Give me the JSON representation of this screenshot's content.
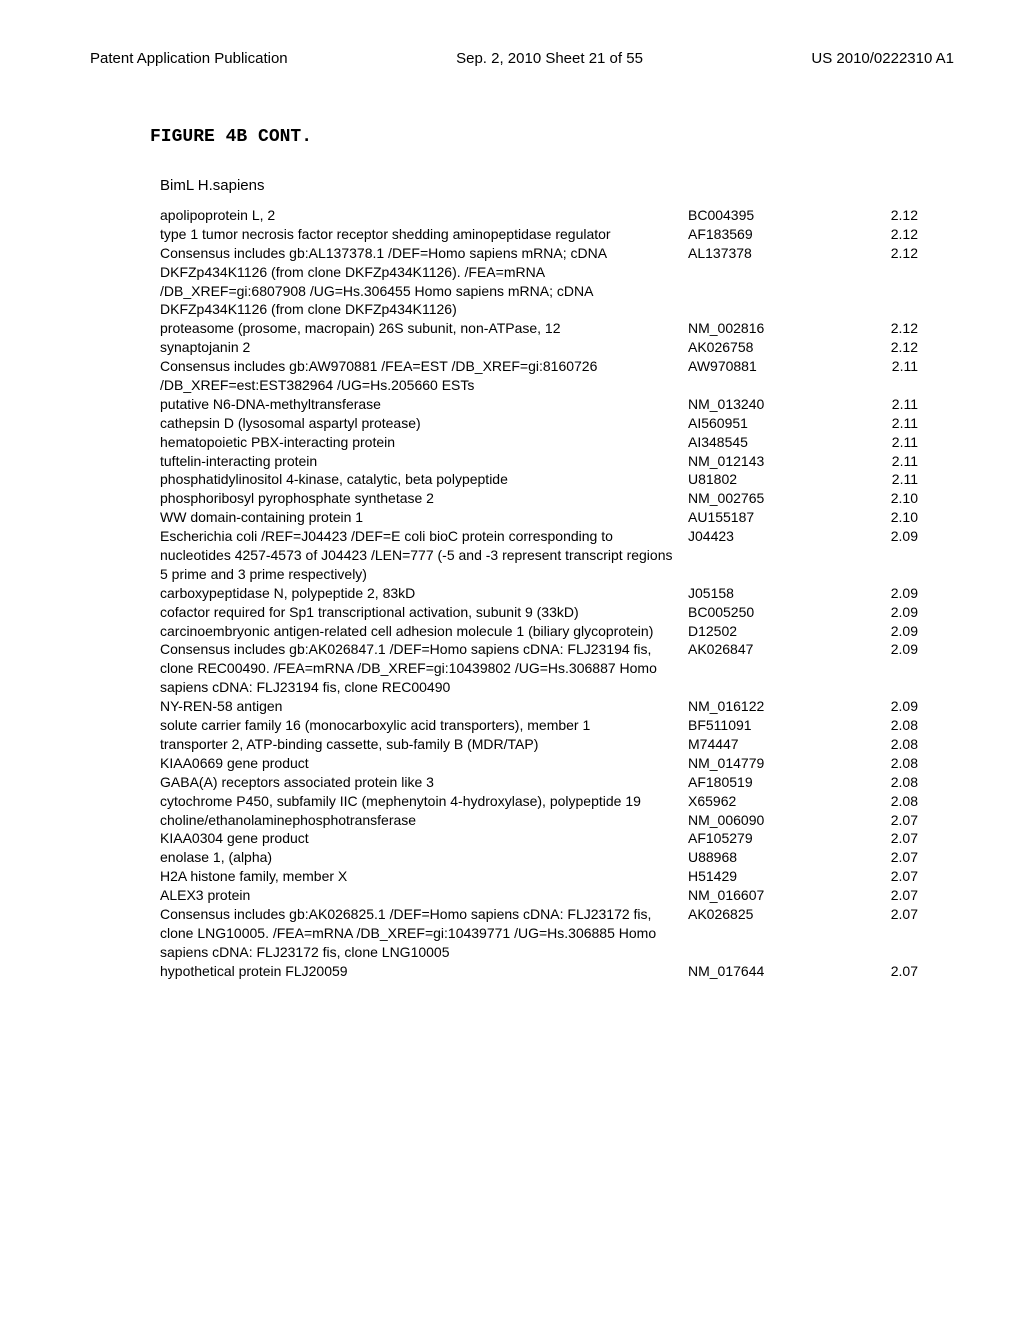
{
  "header": {
    "left": "Patent Application Publication",
    "center": "Sep. 2, 2010  Sheet 21 of 55",
    "right": "US 2010/0222310 A1"
  },
  "figure": {
    "title": "FIGURE 4B CONT.",
    "subtitle": "BimL H.sapiens"
  },
  "rows": [
    {
      "desc": "apolipoprotein L, 2",
      "acc": "BC004395",
      "val": "2.12"
    },
    {
      "desc": "type 1 tumor necrosis factor receptor shedding aminopeptidase regulator",
      "acc": "AF183569",
      "val": "2.12"
    },
    {
      "desc": "Consensus includes gb:AL137378.1 /DEF=Homo sapiens mRNA; cDNA DKFZp434K1126 (from clone DKFZp434K1126). /FEA=mRNA /DB_XREF=gi:6807908 /UG=Hs.306455 Homo sapiens mRNA; cDNA DKFZp434K1126 (from clone DKFZp434K1126)",
      "acc": "AL137378",
      "val": "2.12"
    },
    {
      "desc": "proteasome (prosome, macropain) 26S subunit, non-ATPase, 12",
      "acc": "NM_002816",
      "val": "2.12"
    },
    {
      "desc": "synaptojanin 2",
      "acc": "AK026758",
      "val": "2.12"
    },
    {
      "desc": "Consensus includes gb:AW970881 /FEA=EST /DB_XREF=gi:8160726 /DB_XREF=est:EST382964 /UG=Hs.205660 ESTs",
      "acc": "AW970881",
      "val": "2.11"
    },
    {
      "desc": "putative N6-DNA-methyltransferase",
      "acc": "NM_013240",
      "val": "2.11"
    },
    {
      "desc": "cathepsin D (lysosomal aspartyl protease)",
      "acc": "AI560951",
      "val": "2.11"
    },
    {
      "desc": "hematopoietic PBX-interacting protein",
      "acc": "AI348545",
      "val": "2.11"
    },
    {
      "desc": "tuftelin-interacting protein",
      "acc": "NM_012143",
      "val": "2.11"
    },
    {
      "desc": "phosphatidylinositol 4-kinase, catalytic, beta polypeptide",
      "acc": "U81802",
      "val": "2.11"
    },
    {
      "desc": "phosphoribosyl pyrophosphate synthetase 2",
      "acc": "NM_002765",
      "val": "2.10"
    },
    {
      "desc": "WW domain-containing protein 1",
      "acc": "AU155187",
      "val": "2.10"
    },
    {
      "desc": "Escherichia coli /REF=J04423 /DEF=E coli bioC protein corresponding to nucleotides 4257-4573 of J04423 /LEN=777 (-5 and -3 represent transcript regions 5 prime and 3 prime respectively)",
      "acc": "J04423",
      "val": "2.09"
    },
    {
      "desc": "carboxypeptidase N, polypeptide 2, 83kD",
      "acc": "J05158",
      "val": "2.09"
    },
    {
      "desc": "cofactor required for Sp1 transcriptional activation, subunit 9 (33kD)",
      "acc": "BC005250",
      "val": "2.09"
    },
    {
      "desc": "carcinoembryonic antigen-related cell adhesion molecule 1 (biliary glycoprotein)",
      "acc": "D12502",
      "val": "2.09"
    },
    {
      "desc": "Consensus includes gb:AK026847.1 /DEF=Homo sapiens cDNA: FLJ23194 fis, clone REC00490. /FEA=mRNA /DB_XREF=gi:10439802 /UG=Hs.306887 Homo sapiens cDNA: FLJ23194 fis, clone REC00490",
      "acc": "AK026847",
      "val": "2.09"
    },
    {
      "desc": "NY-REN-58 antigen",
      "acc": "NM_016122",
      "val": "2.09"
    },
    {
      "desc": "solute carrier family 16 (monocarboxylic acid transporters), member 1",
      "acc": "BF511091",
      "val": "2.08"
    },
    {
      "desc": "transporter 2, ATP-binding cassette, sub-family B (MDR/TAP)",
      "acc": "M74447",
      "val": "2.08"
    },
    {
      "desc": "KIAA0669 gene product",
      "acc": "NM_014779",
      "val": "2.08"
    },
    {
      "desc": "GABA(A) receptors associated protein like 3",
      "acc": "AF180519",
      "val": "2.08"
    },
    {
      "desc": "cytochrome P450, subfamily IIC (mephenytoin 4-hydroxylase), polypeptide 19",
      "acc": "X65962",
      "val": "2.08"
    },
    {
      "desc": "choline/ethanolaminephosphotransferase",
      "acc": "NM_006090",
      "val": "2.07"
    },
    {
      "desc": "KIAA0304 gene product",
      "acc": "AF105279",
      "val": "2.07"
    },
    {
      "desc": "enolase 1, (alpha)",
      "acc": "U88968",
      "val": "2.07"
    },
    {
      "desc": "H2A histone family, member X",
      "acc": "H51429",
      "val": "2.07"
    },
    {
      "desc": "ALEX3 protein",
      "acc": "NM_016607",
      "val": "2.07"
    },
    {
      "desc": "Consensus includes gb:AK026825.1 /DEF=Homo sapiens cDNA: FLJ23172 fis, clone LNG10005. /FEA=mRNA /DB_XREF=gi:10439771 /UG=Hs.306885 Homo sapiens cDNA: FLJ23172 fis, clone LNG10005",
      "acc": "AK026825",
      "val": "2.07"
    },
    {
      "desc": "hypothetical protein FLJ20059",
      "acc": "NM_017644",
      "val": "2.07"
    }
  ]
}
